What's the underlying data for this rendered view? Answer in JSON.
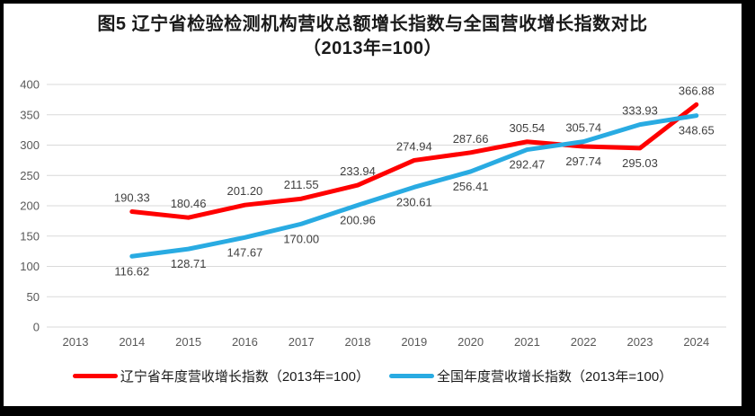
{
  "title": {
    "line1": "图5  辽宁省检验检测机构营收总额增长指数与全国营收增长指数对比",
    "line2": "（2013年=100）"
  },
  "legend": {
    "items": [
      {
        "id": "liaoning",
        "label": "辽宁省年度营收增长指数（2013年=100）",
        "color": "#ff0000"
      },
      {
        "id": "national",
        "label": "全国年度营收增长指数（2013年=100）",
        "color": "#29abe2"
      }
    ]
  },
  "chart_data": {
    "type": "line",
    "title": "图5 辽宁省检验检测机构营收总额增长指数与全国营收增长指数对比（2013年=100）",
    "categories": [
      "2013",
      "2014",
      "2015",
      "2016",
      "2017",
      "2018",
      "2019",
      "2020",
      "2021",
      "2022",
      "2023",
      "2024"
    ],
    "series": [
      {
        "name": "辽宁省年度营收增长指数（2013年=100）",
        "color": "#ff0000",
        "values": [
          null,
          190.33,
          180.46,
          201.2,
          211.55,
          233.94,
          274.94,
          287.66,
          305.54,
          297.74,
          295.03,
          366.88
        ]
      },
      {
        "name": "全国年度营收增长指数（2013年=100）",
        "color": "#29abe2",
        "values": [
          null,
          116.62,
          128.71,
          147.67,
          170.0,
          200.96,
          230.61,
          256.41,
          292.47,
          305.74,
          333.93,
          348.65
        ]
      }
    ],
    "ylim": [
      0,
      400
    ],
    "ytick_step": 50,
    "grid": true,
    "data_labels": true,
    "data_label_decimals": 2,
    "legend_position": "bottom",
    "colors": {
      "gridline": "#d9d9d9",
      "tick_label": "#595959",
      "data_label": "#404040"
    }
  }
}
